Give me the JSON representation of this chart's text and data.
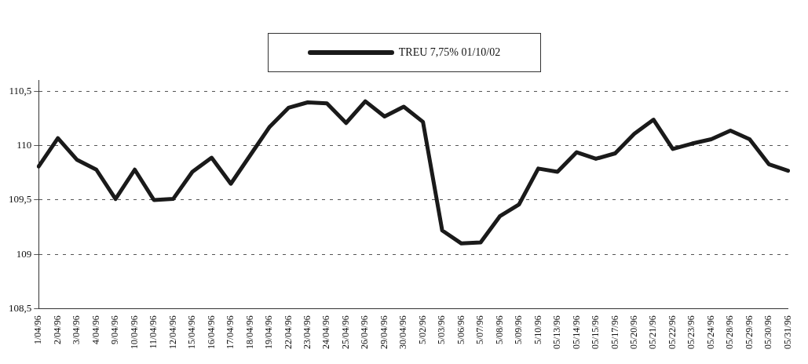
{
  "chart_data": {
    "type": "line",
    "categories": [
      "1/04/96",
      "2/04/96",
      "3/04/96",
      "4/04/96",
      "9/04/96",
      "10/04/96",
      "11/04/96",
      "12/04/96",
      "15/04/96",
      "16/04/96",
      "17/04/96",
      "18/04/96",
      "19/04/96",
      "22/04/96",
      "23/04/96",
      "24/04/96",
      "25/04/96",
      "26/04/96",
      "29/04/96",
      "30/04/96",
      "5/02/96",
      "5/03/96",
      "5/06/96",
      "5/07/96",
      "5/08/96",
      "5/09/96",
      "5/10/96",
      "05/13/96",
      "05/14/96",
      "05/15/96",
      "05/17/96",
      "05/20/96",
      "05/21/96",
      "05/22/96",
      "05/23/96",
      "05/24/96",
      "05/28/96",
      "05/29/96",
      "05/30/96",
      "05/31/96"
    ],
    "series": [
      {
        "name": "TREU 7,75% 01/10/02",
        "color": "#1a1a1a",
        "values": [
          109.81,
          110.07,
          109.87,
          109.78,
          109.51,
          109.78,
          109.5,
          109.51,
          109.76,
          109.89,
          109.65,
          109.91,
          110.17,
          110.35,
          110.4,
          110.39,
          110.21,
          110.41,
          110.27,
          110.36,
          110.22,
          109.22,
          109.1,
          109.11,
          109.35,
          109.46,
          109.79,
          109.76,
          109.94,
          109.88,
          109.93,
          110.11,
          110.24,
          109.97,
          110.02,
          110.06,
          110.14,
          110.06,
          109.83,
          109.77
        ]
      }
    ],
    "ylim": [
      108.5,
      110.6
    ],
    "yticks": [
      {
        "value": 108.5,
        "label": "108,5"
      },
      {
        "value": 109,
        "label": "109"
      },
      {
        "value": 109.5,
        "label": "109,5"
      },
      {
        "value": 110,
        "label": "110"
      },
      {
        "value": 110.5,
        "label": "110,5"
      }
    ],
    "grid": "y",
    "line_style": "solid",
    "marker": "none",
    "legend": "top"
  }
}
